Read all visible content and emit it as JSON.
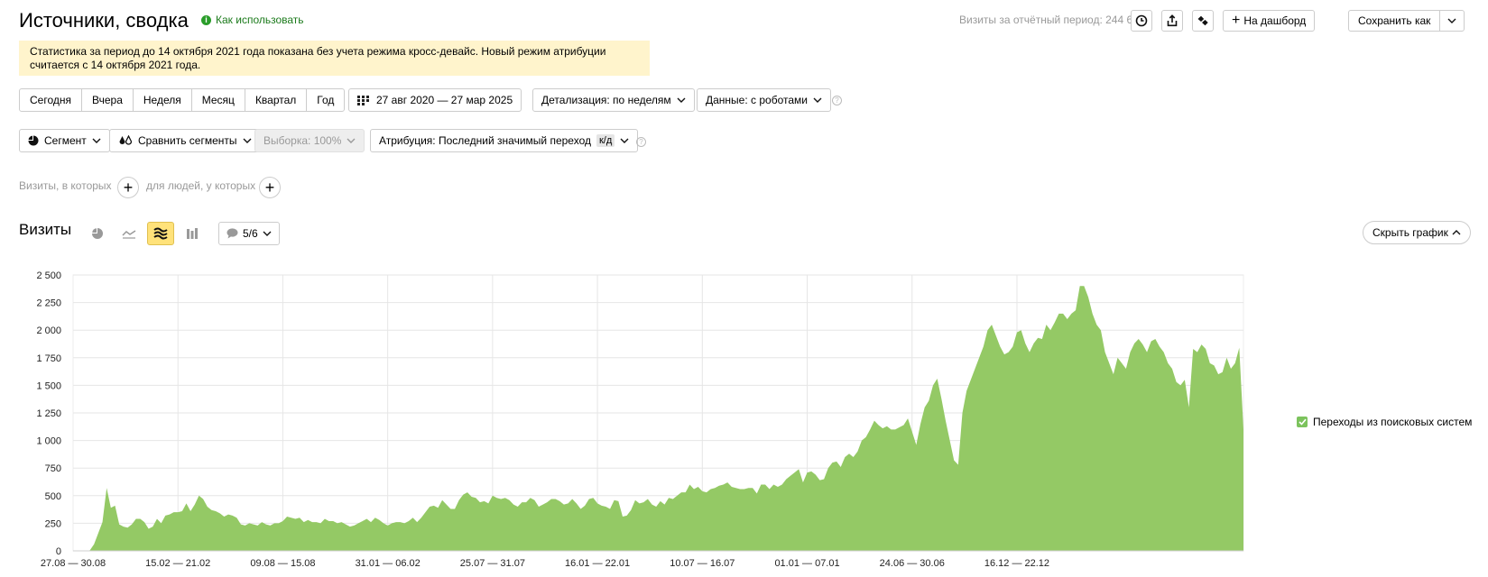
{
  "header": {
    "title": "Источники, сводка",
    "how_to_use": "Как использовать",
    "info_icon": "i",
    "visits_total": "Визиты за отчётный период: 244 629",
    "to_dashboard": "На дашборд",
    "save_as": "Сохранить как"
  },
  "notice": "Статистика за период до 14 октября 2021 года показана без учета режима кросс-девайс. Новый режим атрибуции считается с 14 октября 2021 года.",
  "periods": [
    "Сегодня",
    "Вчера",
    "Неделя",
    "Месяц",
    "Квартал",
    "Год"
  ],
  "date_range": "27 авг 2020 — 27 мар 2025",
  "detail": "Детализация: по неделям",
  "robots": "Данные: с роботами",
  "help_mark": "?",
  "segment": "Сегмент",
  "compare": "Сравнить сегменты",
  "sample": "Выборка: 100%",
  "attribution": "Атрибуция: Последний значимый переход",
  "kd": "к/д",
  "filter": {
    "visits_where": "Визиты, в которых",
    "people_where": "для людей, у которых"
  },
  "chart_section": {
    "title": "Визиты",
    "annotations": "5/6",
    "hide": "Скрыть график"
  },
  "chart_data": {
    "type": "area",
    "ylim": [
      0,
      2500
    ],
    "yticks": [
      0,
      250,
      500,
      750,
      1000,
      1250,
      1500,
      1750,
      2000,
      2250,
      2500
    ],
    "ytick_labels": [
      "0",
      "250",
      "500",
      "750",
      "1 000",
      "1 250",
      "1 500",
      "1 750",
      "2 000",
      "2 250",
      "2 500"
    ],
    "xtick_labels": [
      "27.08 — 30.08",
      "15.02 — 21.02",
      "09.08 — 15.08",
      "31.01 — 06.02",
      "25.07 — 31.07",
      "16.01 — 22.01",
      "10.07 — 16.07",
      "01.01 — 07.01",
      "24.06 — 30.06",
      "16.12 — 22.12"
    ],
    "xtick_index": [
      0,
      25,
      50,
      75,
      100,
      125,
      150,
      175,
      200,
      225
    ],
    "grid": true,
    "color": "#94c965",
    "legend_position": "right",
    "series": [
      {
        "name": "Переходы из поисковых систем",
        "values": [
          0,
          0,
          0,
          0,
          5,
          60,
          160,
          260,
          570,
          390,
          410,
          240,
          220,
          210,
          240,
          290,
          290,
          260,
          200,
          220,
          290,
          250,
          320,
          330,
          350,
          350,
          360,
          430,
          360,
          420,
          500,
          470,
          400,
          370,
          360,
          340,
          310,
          330,
          320,
          300,
          240,
          230,
          250,
          240,
          230,
          260,
          240,
          230,
          250,
          250,
          270,
          310,
          300,
          290,
          300,
          260,
          280,
          260,
          260,
          250,
          290,
          270,
          270,
          250,
          260,
          240,
          220,
          230,
          250,
          270,
          290,
          260,
          300,
          280,
          250,
          230,
          250,
          260,
          260,
          250,
          270,
          300,
          260,
          300,
          350,
          400,
          410,
          390,
          460,
          420,
          380,
          380,
          460,
          510,
          530,
          490,
          480,
          440,
          450,
          430,
          500,
          480,
          470,
          480,
          460,
          420,
          400,
          440,
          440,
          480,
          460,
          400,
          420,
          440,
          470,
          470,
          450,
          420,
          430,
          470,
          430,
          380,
          410,
          470,
          480,
          430,
          410,
          400,
          380,
          460,
          450,
          310,
          320,
          370,
          460,
          430,
          440,
          470,
          420,
          400,
          450,
          420,
          480,
          470,
          500,
          530,
          530,
          600,
          560,
          580,
          540,
          530,
          560,
          570,
          590,
          600,
          620,
          580,
          570,
          560,
          560,
          570,
          570,
          520,
          600,
          600,
          560,
          600,
          580,
          600,
          650,
          680,
          710,
          740,
          620,
          710,
          720,
          690,
          640,
          650,
          750,
          800,
          810,
          760,
          850,
          880,
          850,
          900,
          1000,
          1030,
          1100,
          1180,
          1140,
          1110,
          1130,
          1100,
          1100,
          1120,
          1140,
          1200,
          1080,
          960,
          1150,
          1300,
          1360,
          1500,
          1560,
          1380,
          1180,
          1000,
          820,
          780,
          1250,
          1450,
          1550,
          1650,
          1750,
          1850,
          2000,
          2050,
          1950,
          1850,
          1780,
          1800,
          1850,
          1980,
          2000,
          1880,
          1800,
          1880,
          1930,
          1920,
          2050,
          2000,
          2070,
          2150,
          2150,
          2100,
          2150,
          2180,
          2400,
          2400,
          2300,
          2150,
          2050,
          2000,
          1800,
          1700,
          1600,
          1750,
          1700,
          1650,
          1800,
          1880,
          1920,
          1870,
          1800,
          1900,
          1920,
          1850,
          1800,
          1700,
          1650,
          1530,
          1500,
          1550,
          1300,
          1830,
          1800,
          1870,
          1830,
          1700,
          1680,
          1600,
          1620,
          1750,
          1650,
          1700,
          1840,
          1100
        ]
      }
    ]
  }
}
